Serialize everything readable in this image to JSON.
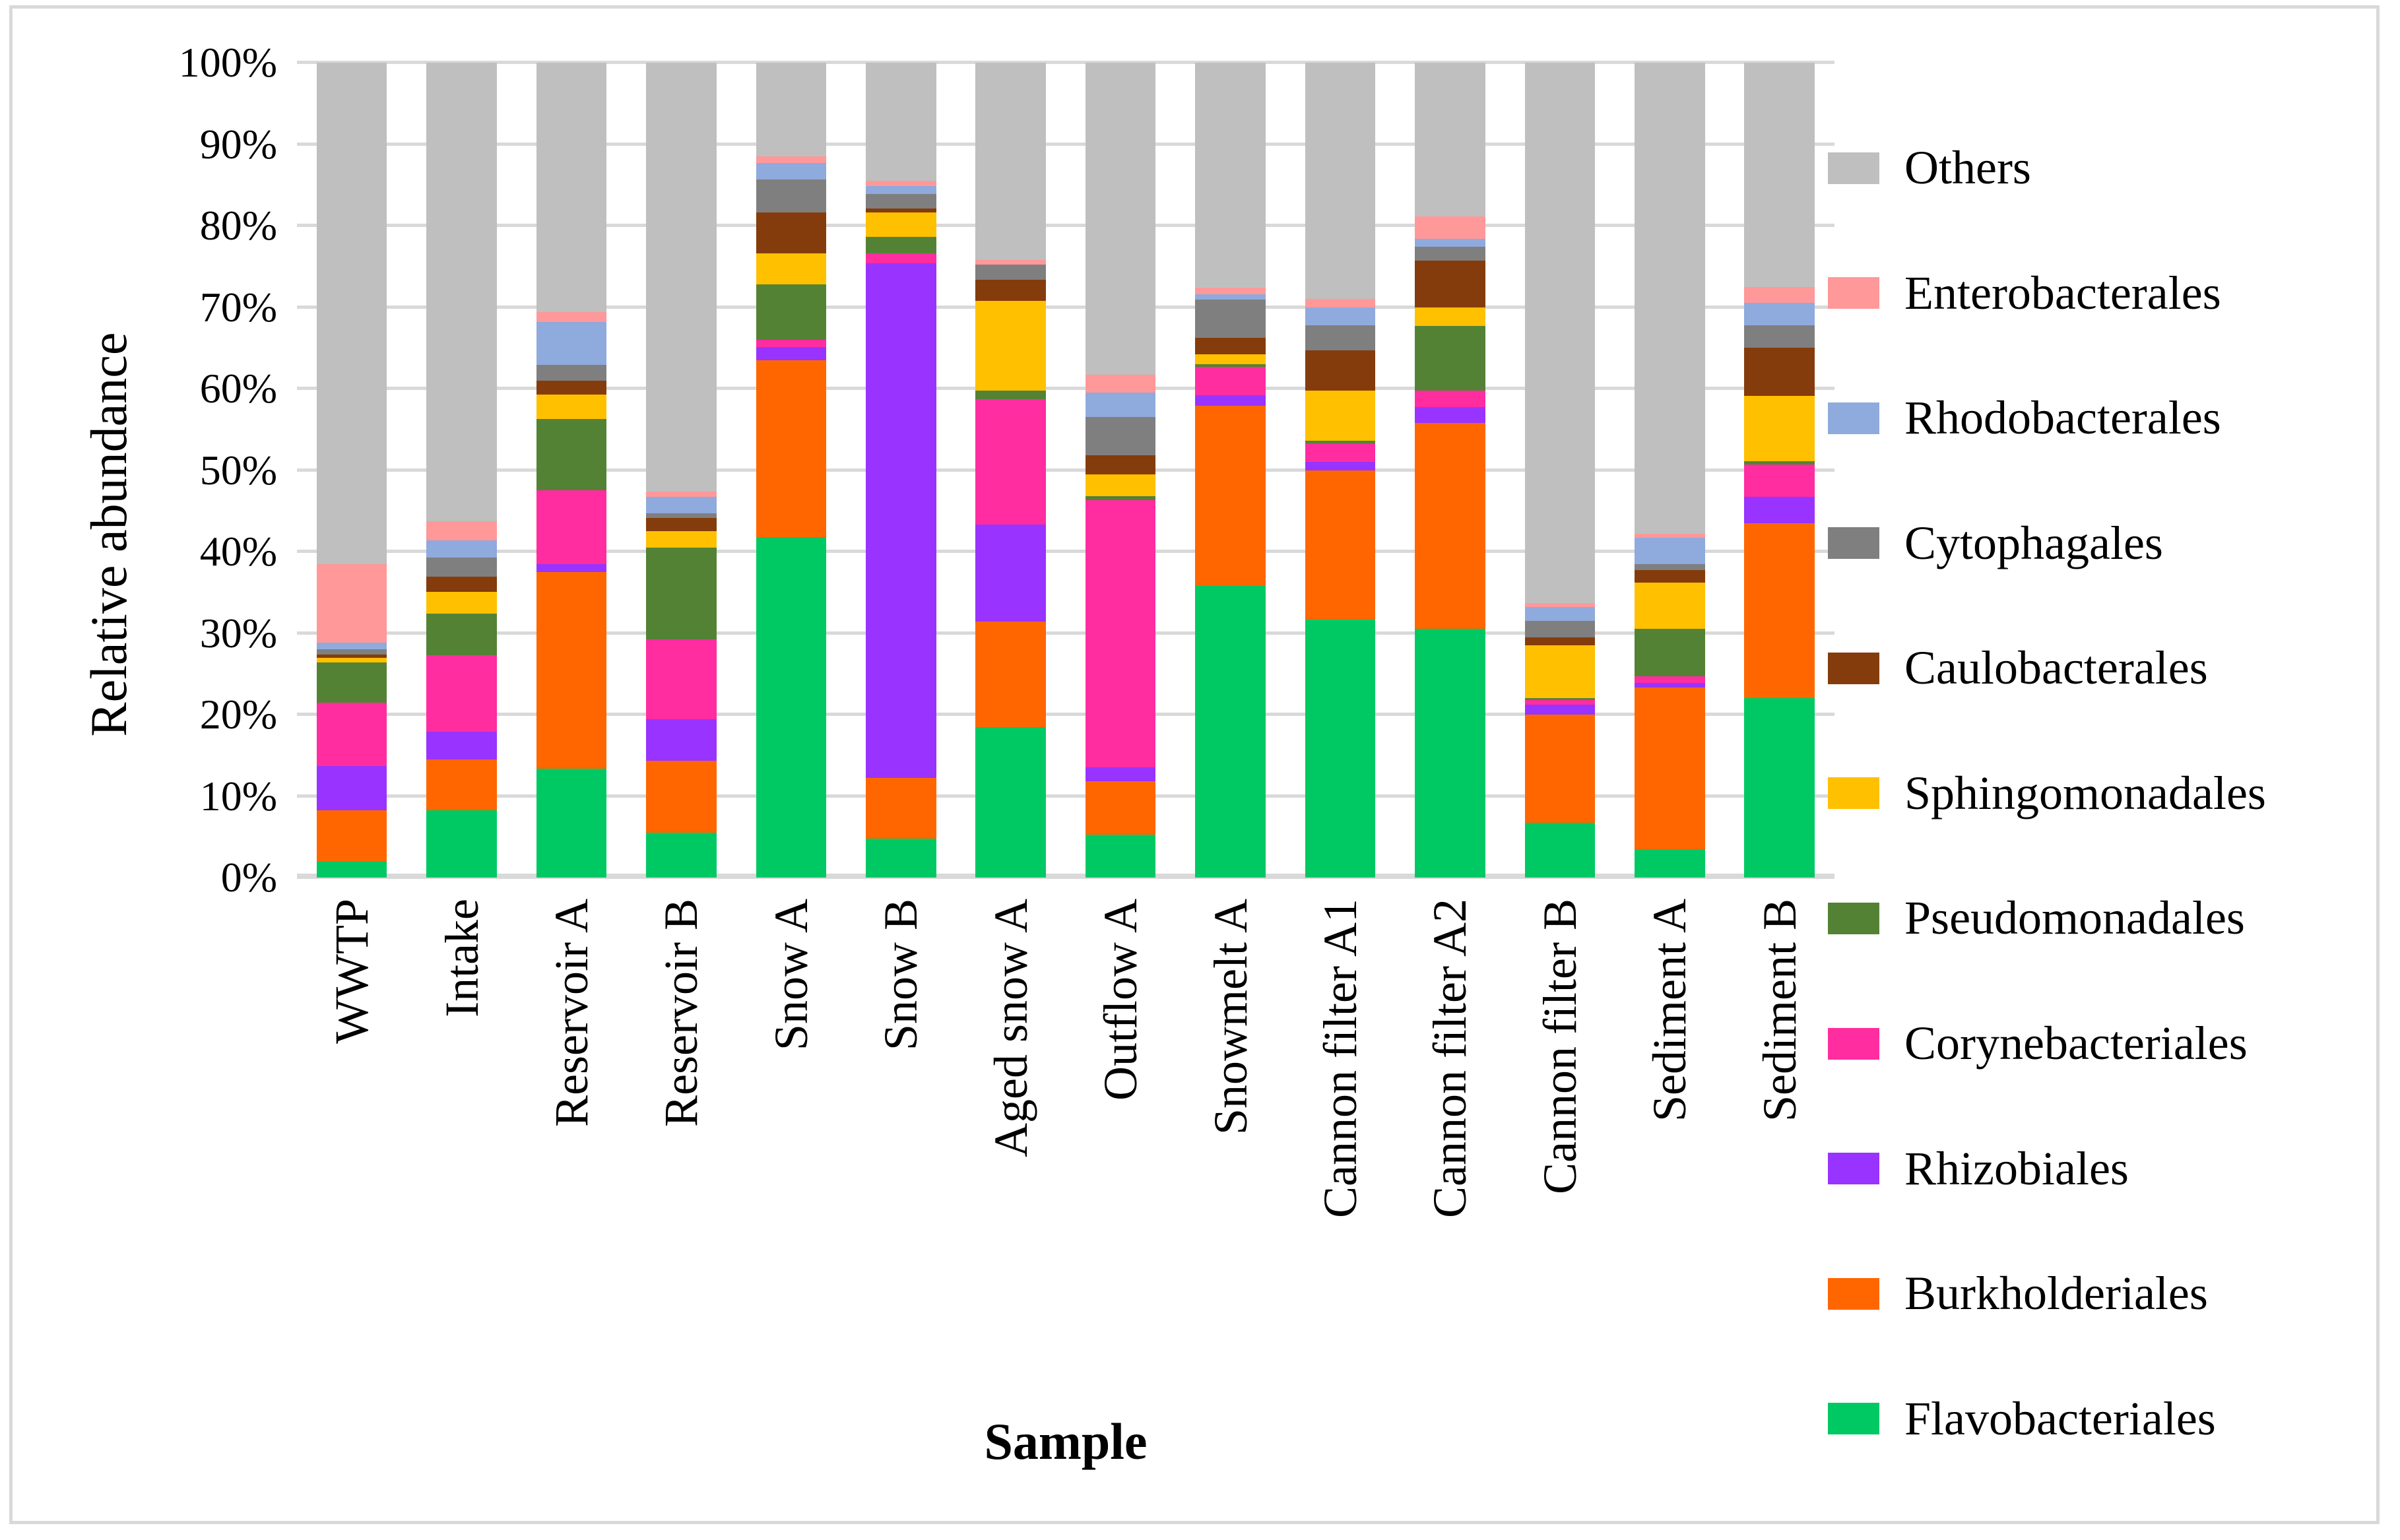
{
  "figure": {
    "background": "#FFFFFF",
    "border_color": "#D9D9D9",
    "gridline_color": "#D9D9D9"
  },
  "chart_data": {
    "type": "bar",
    "stacked": true,
    "units": "percent",
    "title": "",
    "xlabel": "Sample",
    "ylabel": "Relative abundance",
    "ylim": [
      0,
      100
    ],
    "ytick_step": 10,
    "ytick_labels": [
      "0%",
      "10%",
      "20%",
      "30%",
      "40%",
      "50%",
      "60%",
      "70%",
      "80%",
      "90%",
      "100%"
    ],
    "grid": true,
    "legend_position": "right",
    "legend_order": "top-to-bottom is reverse of stacking order",
    "categories": [
      "WWTP",
      "Intake",
      "Reservoir A",
      "Reservoir B",
      "Snow A",
      "Snow B",
      "Aged snow A",
      "Outflow A",
      "Snowmelt A",
      "Cannon filter A1",
      "Cannon filter A2",
      "Cannon filter B",
      "Sediment A",
      "Sediment B"
    ],
    "series": [
      {
        "name": "Flavobacteriales",
        "color": "#00C964",
        "values": [
          2.0,
          8.3,
          13.4,
          5.5,
          41.8,
          4.8,
          18.5,
          5.3,
          35.8,
          31.7,
          30.5,
          6.7,
          3.5,
          22.0
        ]
      },
      {
        "name": "Burkholderiales",
        "color": "#FF6600",
        "values": [
          6.3,
          6.2,
          24.1,
          8.8,
          21.7,
          7.4,
          12.9,
          6.5,
          22.1,
          18.3,
          25.3,
          13.3,
          19.8,
          21.5
        ]
      },
      {
        "name": "Rhizobiales",
        "color": "#9933FF",
        "values": [
          5.4,
          3.4,
          1.0,
          5.1,
          1.6,
          63.2,
          11.9,
          1.7,
          1.3,
          1.0,
          1.9,
          1.2,
          0.6,
          3.2
        ]
      },
      {
        "name": "Corynebacteriales",
        "color": "#FF2DA0",
        "values": [
          7.8,
          9.4,
          9.0,
          9.8,
          0.9,
          1.2,
          15.4,
          32.8,
          3.5,
          2.3,
          2.1,
          0.6,
          0.8,
          4.0
        ]
      },
      {
        "name": "Pseudomonadales",
        "color": "#548235",
        "values": [
          4.9,
          5.1,
          8.8,
          11.3,
          6.8,
          2.0,
          1.1,
          0.5,
          0.3,
          0.3,
          7.9,
          0.2,
          5.8,
          0.4
        ]
      },
      {
        "name": "Sphingomonadales",
        "color": "#FFC000",
        "values": [
          0.6,
          2.7,
          3.0,
          2.0,
          3.8,
          3.0,
          11.0,
          2.7,
          1.2,
          6.2,
          2.3,
          6.5,
          5.7,
          8.0
        ]
      },
      {
        "name": "Caulobacterales",
        "color": "#843C0C",
        "values": [
          0.4,
          1.8,
          1.7,
          1.6,
          5.0,
          0.5,
          2.6,
          2.3,
          2.0,
          4.9,
          5.7,
          1.0,
          1.5,
          5.9
        ]
      },
      {
        "name": "Cytophagales",
        "color": "#7F7F7F",
        "values": [
          0.6,
          2.4,
          1.9,
          0.6,
          4.1,
          1.8,
          1.8,
          4.7,
          4.7,
          3.1,
          1.7,
          2.0,
          0.8,
          2.8
        ]
      },
      {
        "name": "Rhodobacterales",
        "color": "#8FAADC",
        "values": [
          0.8,
          2.1,
          5.3,
          2.0,
          2.0,
          1.0,
          0.0,
          3.0,
          0.7,
          2.2,
          1.0,
          1.7,
          3.2,
          2.7
        ]
      },
      {
        "name": "Enterobacterales",
        "color": "#FF9899",
        "values": [
          9.7,
          2.3,
          1.2,
          0.7,
          0.8,
          0.6,
          0.6,
          2.2,
          0.8,
          1.0,
          2.7,
          0.5,
          0.5,
          2.0
        ]
      },
      {
        "name": "Others",
        "color": "#BFBFBF",
        "values": [
          61.5,
          56.3,
          30.6,
          52.6,
          11.5,
          14.5,
          24.2,
          38.3,
          27.6,
          29.0,
          18.9,
          66.3,
          57.8,
          27.5
        ]
      }
    ]
  }
}
